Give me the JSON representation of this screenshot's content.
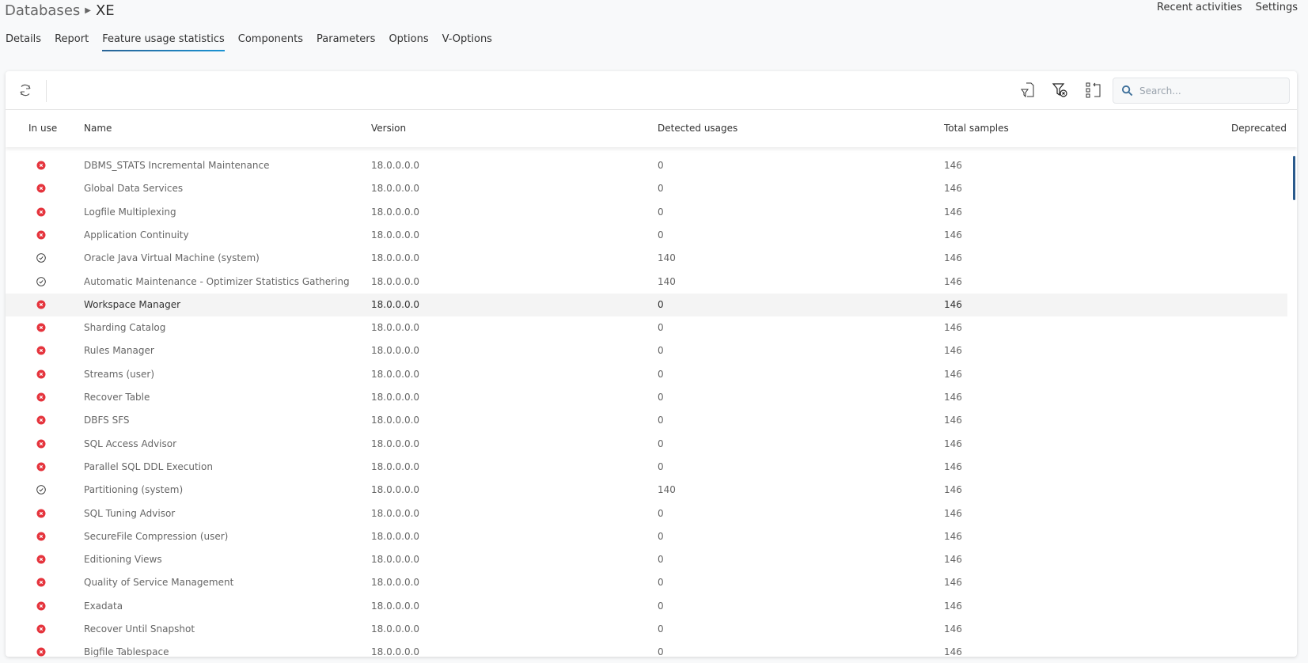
{
  "breadcrumb": {
    "parent": "Databases",
    "current": "XE"
  },
  "topnav": [
    "Recent activities",
    "Settings"
  ],
  "tabs": [
    {
      "label": "Details"
    },
    {
      "label": "Report"
    },
    {
      "label": "Feature usage statistics",
      "active": true
    },
    {
      "label": "Components"
    },
    {
      "label": "Parameters"
    },
    {
      "label": "Options"
    },
    {
      "label": "V-Options"
    }
  ],
  "toolbar": {
    "icons": [
      "refresh-icon",
      "export-filter-icon",
      "clear-filter-icon",
      "column-chooser-icon"
    ],
    "search_placeholder": "Search...",
    "search_value": ""
  },
  "colors": {
    "accent": "#1a93d3",
    "error": "#e5343d",
    "scrollbar": "#2a5a8c"
  },
  "columns": [
    "In use",
    "Name",
    "Version",
    "Detected usages",
    "Total samples",
    "Deprecated"
  ],
  "rows": [
    {
      "in_use": false,
      "name": "DBMS_STATS Incremental Maintenance",
      "version": "18.0.0.0.0",
      "detected": "0",
      "total": "146"
    },
    {
      "in_use": false,
      "name": "Global Data Services",
      "version": "18.0.0.0.0",
      "detected": "0",
      "total": "146"
    },
    {
      "in_use": false,
      "name": "Logfile Multiplexing",
      "version": "18.0.0.0.0",
      "detected": "0",
      "total": "146"
    },
    {
      "in_use": false,
      "name": "Application Continuity",
      "version": "18.0.0.0.0",
      "detected": "0",
      "total": "146"
    },
    {
      "in_use": true,
      "name": "Oracle Java Virtual Machine (system)",
      "version": "18.0.0.0.0",
      "detected": "140",
      "total": "146"
    },
    {
      "in_use": true,
      "name": "Automatic Maintenance - Optimizer Statistics Gathering",
      "version": "18.0.0.0.0",
      "detected": "140",
      "total": "146"
    },
    {
      "in_use": false,
      "name": "Workspace Manager",
      "version": "18.0.0.0.0",
      "detected": "0",
      "total": "146",
      "highlighted": true
    },
    {
      "in_use": false,
      "name": "Sharding Catalog",
      "version": "18.0.0.0.0",
      "detected": "0",
      "total": "146"
    },
    {
      "in_use": false,
      "name": "Rules Manager",
      "version": "18.0.0.0.0",
      "detected": "0",
      "total": "146"
    },
    {
      "in_use": false,
      "name": "Streams (user)",
      "version": "18.0.0.0.0",
      "detected": "0",
      "total": "146"
    },
    {
      "in_use": false,
      "name": "Recover Table",
      "version": "18.0.0.0.0",
      "detected": "0",
      "total": "146"
    },
    {
      "in_use": false,
      "name": "DBFS SFS",
      "version": "18.0.0.0.0",
      "detected": "0",
      "total": "146"
    },
    {
      "in_use": false,
      "name": "SQL Access Advisor",
      "version": "18.0.0.0.0",
      "detected": "0",
      "total": "146"
    },
    {
      "in_use": false,
      "name": "Parallel SQL DDL Execution",
      "version": "18.0.0.0.0",
      "detected": "0",
      "total": "146"
    },
    {
      "in_use": true,
      "name": "Partitioning (system)",
      "version": "18.0.0.0.0",
      "detected": "140",
      "total": "146"
    },
    {
      "in_use": false,
      "name": "SQL Tuning Advisor",
      "version": "18.0.0.0.0",
      "detected": "0",
      "total": "146"
    },
    {
      "in_use": false,
      "name": "SecureFile Compression (user)",
      "version": "18.0.0.0.0",
      "detected": "0",
      "total": "146"
    },
    {
      "in_use": false,
      "name": "Editioning Views",
      "version": "18.0.0.0.0",
      "detected": "0",
      "total": "146"
    },
    {
      "in_use": false,
      "name": "Quality of Service Management",
      "version": "18.0.0.0.0",
      "detected": "0",
      "total": "146"
    },
    {
      "in_use": false,
      "name": "Exadata",
      "version": "18.0.0.0.0",
      "detected": "0",
      "total": "146"
    },
    {
      "in_use": false,
      "name": "Recover Until Snapshot",
      "version": "18.0.0.0.0",
      "detected": "0",
      "total": "146"
    },
    {
      "in_use": false,
      "name": "Bigfile Tablespace",
      "version": "18.0.0.0.0",
      "detected": "0",
      "total": "146"
    }
  ]
}
